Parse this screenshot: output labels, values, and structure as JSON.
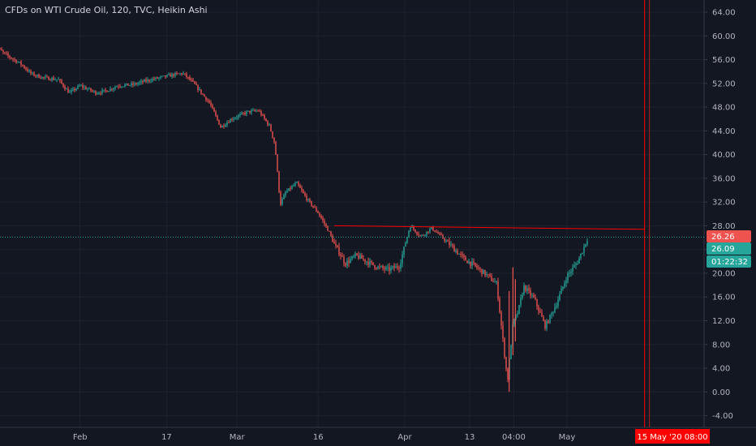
{
  "header": {
    "title": "CFDs on WTI Crude Oil, 120, TVC, Heikin Ashi"
  },
  "colors": {
    "background": "#131722",
    "grid": "#1e222d",
    "up": "#26a69a",
    "down": "#ef5350",
    "axis_text": "#b2b5be",
    "crosshair": "#ff0000",
    "price_line": "#26a69a"
  },
  "chart_data": {
    "type": "candlestick",
    "title": "CFDs on WTI Crude Oil, 120, TVC, Heikin Ashi",
    "y_ticks": [
      64,
      60,
      56,
      52,
      48,
      44,
      40,
      36,
      32,
      28,
      24,
      20,
      16,
      12,
      8,
      4,
      0,
      -4
    ],
    "y_tick_labels": [
      "64.00",
      "60.00",
      "56.00",
      "52.00",
      "48.00",
      "44.00",
      "40.00",
      "36.00",
      "32.00",
      "28.00",
      "24.00",
      "20.00",
      "16.00",
      "12.00",
      "8.00",
      "4.00",
      "0.00",
      "-4.00"
    ],
    "ylim": [
      -6,
      65.5
    ],
    "x_ticks": [
      {
        "label": "Feb",
        "date": "2020-02-01"
      },
      {
        "label": "17",
        "date": "2020-02-17"
      },
      {
        "label": "Mar",
        "date": "2020-03-01"
      },
      {
        "label": "16",
        "date": "2020-03-16"
      },
      {
        "label": "Apr",
        "date": "2020-04-01"
      },
      {
        "label": "13",
        "date": "2020-04-13"
      },
      {
        "label": "04:00",
        "date": "2020-04-21T04:00"
      },
      {
        "label": "May",
        "date": "2020-05-01"
      }
    ],
    "series": [
      {
        "x": [
          "2020-01-16",
          "2020-01-18",
          "2020-01-21",
          "2020-01-23",
          "2020-01-25",
          "2020-01-28",
          "2020-01-30",
          "2020-02-01",
          "2020-02-04",
          "2020-02-06",
          "2020-02-08",
          "2020-02-11",
          "2020-02-13",
          "2020-02-15",
          "2020-02-18",
          "2020-02-20",
          "2020-02-22",
          "2020-02-25",
          "2020-02-27",
          "2020-02-29",
          "2020-03-03",
          "2020-03-05",
          "2020-03-07",
          "2020-03-08",
          "2020-03-09",
          "2020-03-10",
          "2020-03-12",
          "2020-03-14",
          "2020-03-16",
          "2020-03-18",
          "2020-03-19",
          "2020-03-20",
          "2020-03-21",
          "2020-03-23",
          "2020-03-25",
          "2020-03-27",
          "2020-03-29",
          "2020-03-31",
          "2020-04-02",
          "2020-04-04",
          "2020-04-06",
          "2020-04-08",
          "2020-04-10",
          "2020-04-12",
          "2020-04-14",
          "2020-04-16",
          "2020-04-18",
          "2020-04-20",
          "2020-04-21",
          "2020-04-22",
          "2020-04-23",
          "2020-04-25",
          "2020-04-27",
          "2020-04-29",
          "2020-05-01",
          "2020-05-03",
          "2020-05-05"
        ],
        "y": [
          58.6,
          57.0,
          55.3,
          53.6,
          53.0,
          52.6,
          50.4,
          51.6,
          50.4,
          50.8,
          51.6,
          51.8,
          52.4,
          52.8,
          53.4,
          53.7,
          52.0,
          48.6,
          44.6,
          46.0,
          47.2,
          47.4,
          44.8,
          41.8,
          31.6,
          33.6,
          35.2,
          32.4,
          30.2,
          27.0,
          24.8,
          23.4,
          21.6,
          23.0,
          22.0,
          21.0,
          20.6,
          21.2,
          28.0,
          26.2,
          27.6,
          26.0,
          24.2,
          22.4,
          21.2,
          19.8,
          18.2,
          1.8,
          11.5,
          13.6,
          17.8,
          15.6,
          11.0,
          14.8,
          19.5,
          22.0,
          26.26
        ]
      }
    ],
    "resistance_line": {
      "x": [
        "2020-03-19",
        "2020-05-15T08:00"
      ],
      "y": [
        28.0,
        27.4
      ]
    },
    "last_price": 26.09,
    "tags": [
      {
        "label": "26.26",
        "value": 26.26,
        "color": "#ef5350"
      },
      {
        "label": "26.09",
        "value": 26.09,
        "color": "#26a69a"
      },
      {
        "label": "01:22:32",
        "color": "#26a69a"
      }
    ],
    "crosshair": {
      "x": "2020-05-15T08:00",
      "label": "15 May '20  08:00"
    }
  }
}
